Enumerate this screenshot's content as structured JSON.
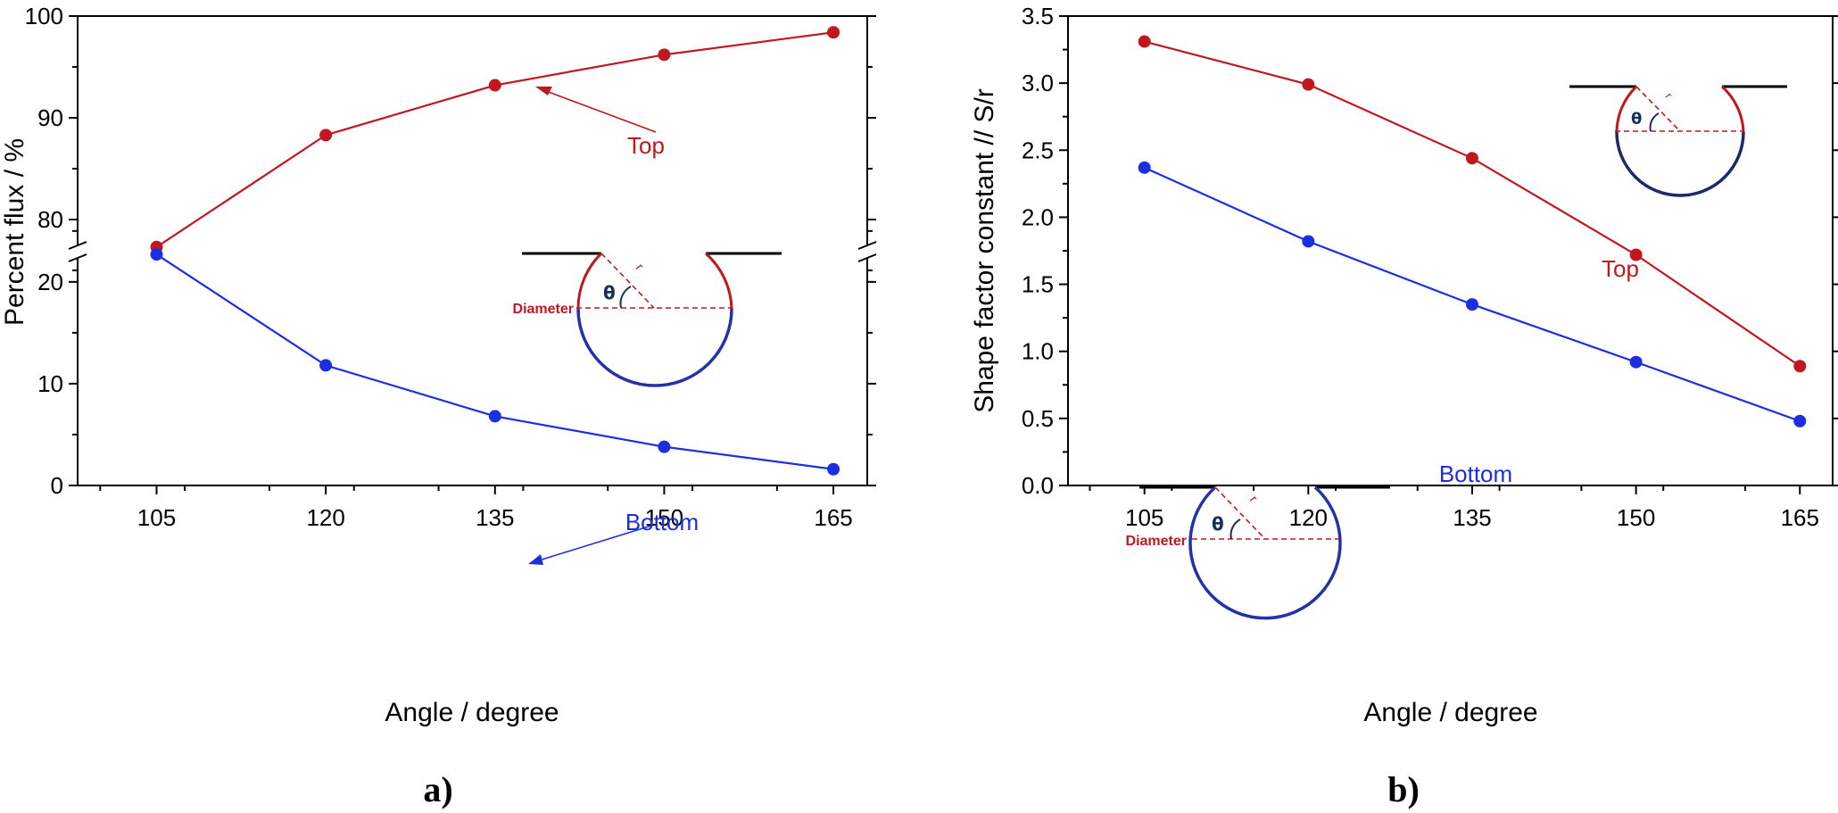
{
  "colors": {
    "top": "#c0181e",
    "bottom": "#1b2fe0",
    "axis": "#000000",
    "inset_bottom": "#2233a8",
    "theta": "#1a2f5a"
  },
  "chart_data": [
    {
      "type": "line",
      "panel_label": "a)",
      "xlabel": "Angle / degree",
      "ylabel": "Percent flux / %",
      "x": [
        105,
        120,
        135,
        150,
        165
      ],
      "xticks": [
        "105",
        "120",
        "135",
        "150",
        "165"
      ],
      "xlim": [
        98,
        168
      ],
      "broken_y_axis": true,
      "ylim_upper": [
        70,
        100
      ],
      "yticks_upper": [
        "80",
        "90",
        "100"
      ],
      "ylim_lower": [
        0,
        27
      ],
      "yticks_lower": [
        "0",
        "10",
        "20"
      ],
      "series": [
        {
          "name": "Top",
          "values": [
            77.3,
            88.3,
            93.2,
            96.2,
            98.4
          ]
        },
        {
          "name": "Bottom",
          "values": [
            22.7,
            11.8,
            6.8,
            3.8,
            1.6
          ]
        }
      ],
      "annotations": {
        "top": "Top",
        "bottom": "Bottom"
      },
      "inset": {
        "diameter_label": "Diameter",
        "theta": "θ",
        "radius": "r"
      }
    },
    {
      "type": "line",
      "panel_label": "b)",
      "xlabel": "Angle / degree",
      "ylabel": "Shape factor constant // S/r",
      "x": [
        105,
        120,
        135,
        150,
        165
      ],
      "xticks": [
        "105",
        "120",
        "135",
        "150",
        "165"
      ],
      "xlim": [
        98,
        168
      ],
      "ylim": [
        0,
        3.5
      ],
      "yticks": [
        "0.0",
        "0.5",
        "1.0",
        "1.5",
        "2.0",
        "2.5",
        "3.0",
        "3.5"
      ],
      "series": [
        {
          "name": "Top",
          "values": [
            3.31,
            2.99,
            2.44,
            1.72,
            0.89
          ]
        },
        {
          "name": "Bottom",
          "values": [
            2.37,
            1.82,
            1.35,
            0.92,
            0.48
          ]
        }
      ],
      "annotations": {
        "top": "Top",
        "bottom": "Bottom"
      },
      "inset_top": {
        "theta": "θ",
        "radius": "r"
      },
      "inset_bottom": {
        "diameter_label": "Diameter",
        "theta": "θ",
        "radius": "r"
      }
    }
  ]
}
